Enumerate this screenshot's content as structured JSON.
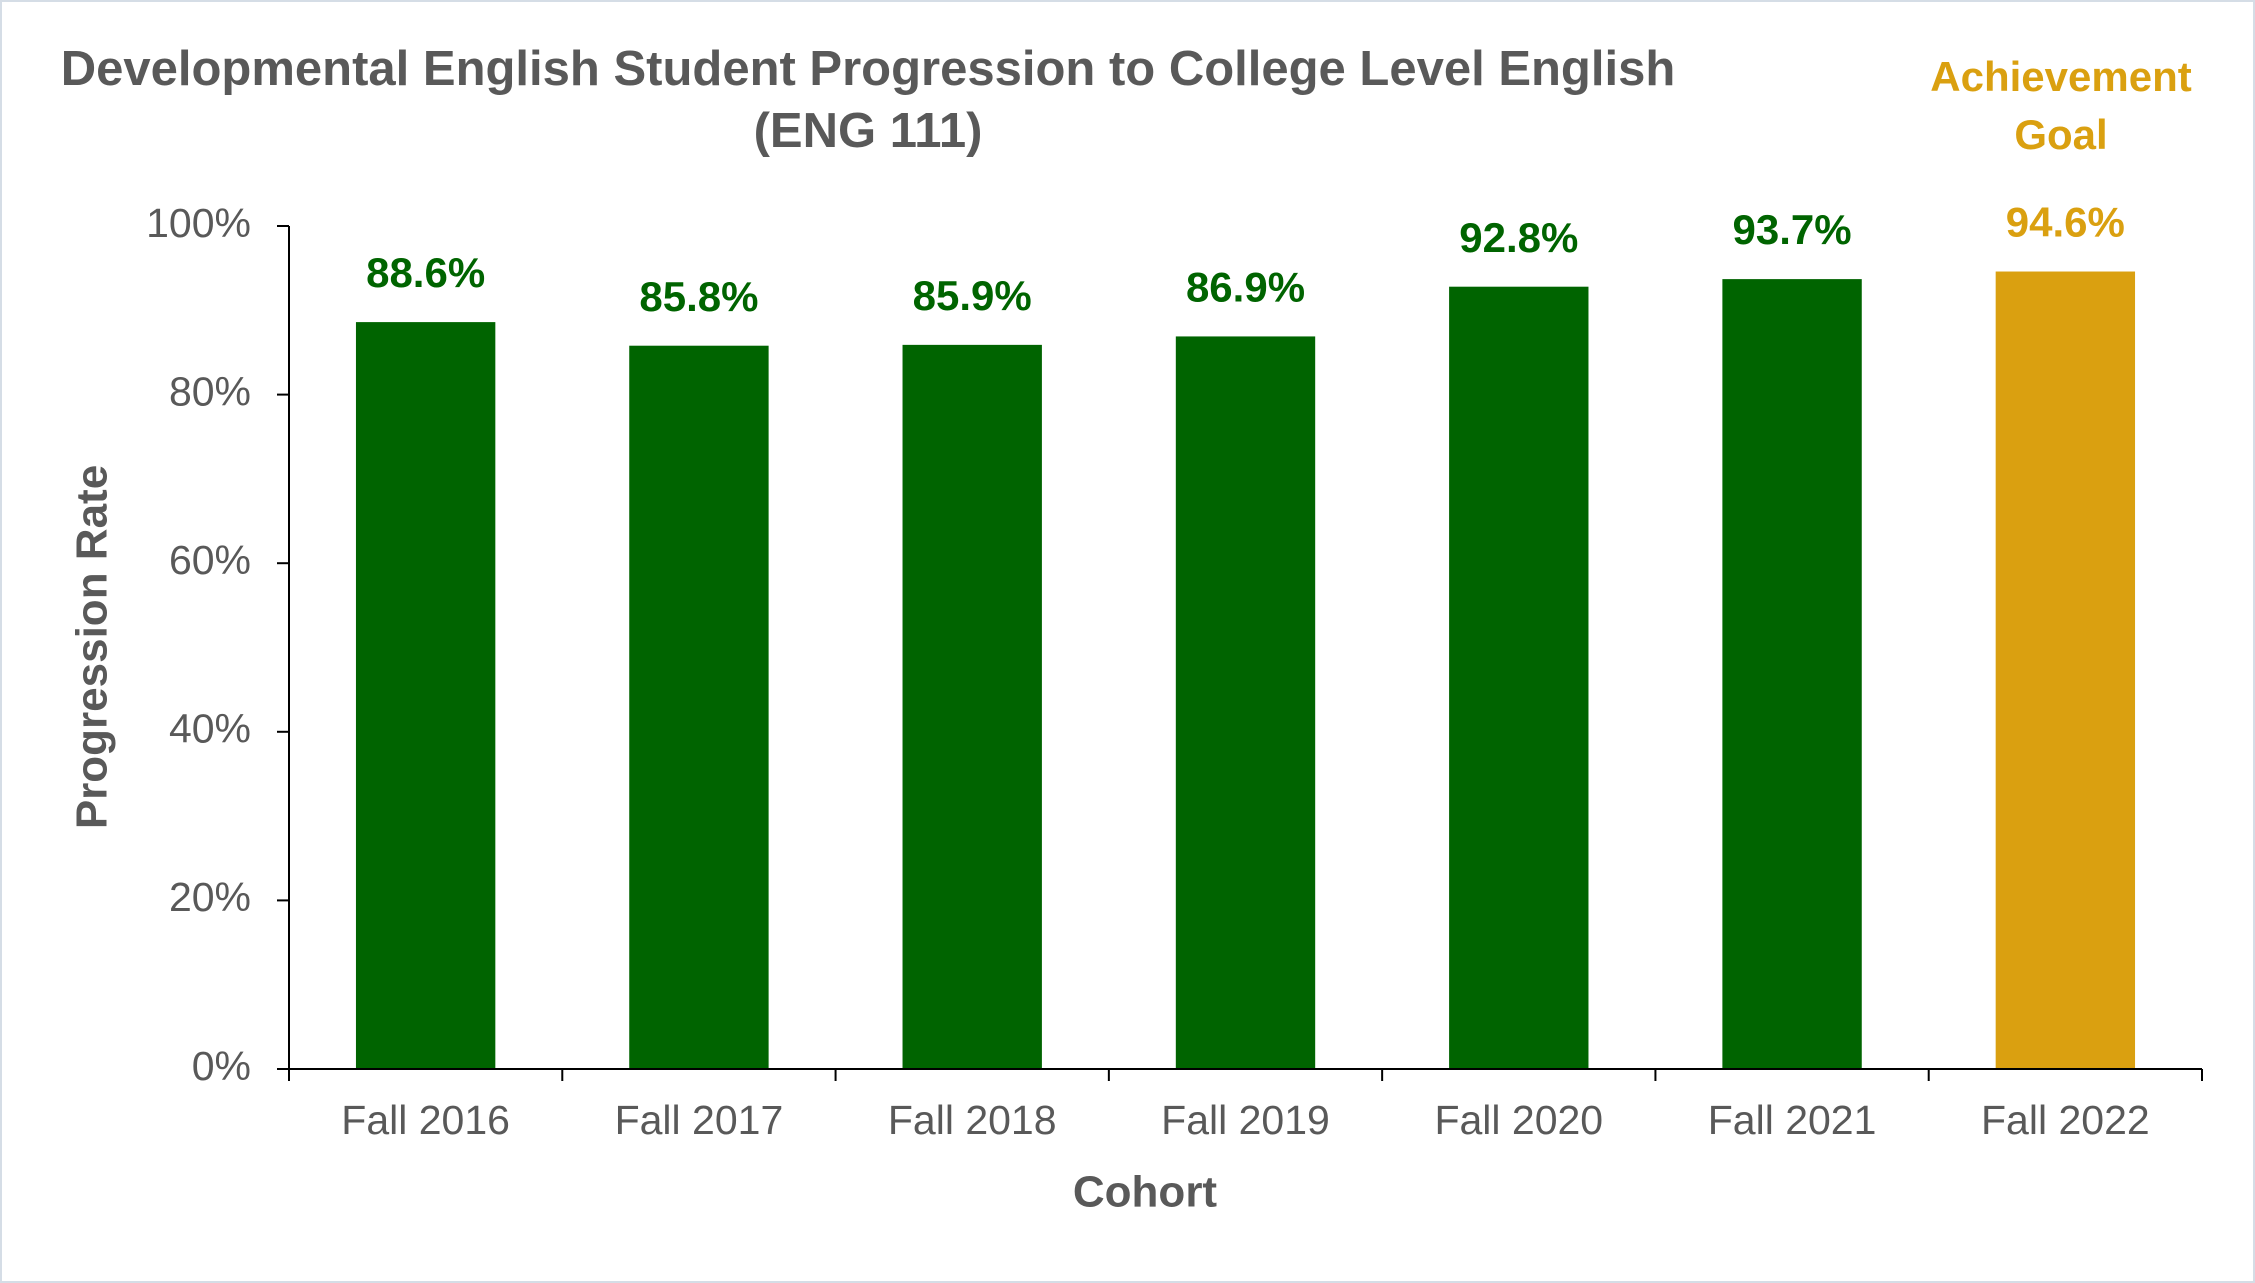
{
  "chart_data": {
    "type": "bar",
    "title": "Developmental English Student Progression to College Level English (ENG 111)",
    "annotation": "Achievement Goal",
    "x_label": "Cohort",
    "y_label": "Progression Rate",
    "categories": [
      "Fall 2016",
      "Fall 2017",
      "Fall 2018",
      "Fall 2019",
      "Fall 2020",
      "Fall 2021",
      "Fall 2022"
    ],
    "values": [
      88.6,
      85.8,
      85.9,
      86.9,
      92.8,
      93.7,
      94.6
    ],
    "value_labels": [
      "88.6%",
      "85.8%",
      "85.9%",
      "86.9%",
      "92.8%",
      "93.7%",
      "94.6%"
    ],
    "colors": [
      "#006400",
      "#006400",
      "#006400",
      "#006400",
      "#006400",
      "#006400",
      "#DAA010"
    ],
    "ylim": [
      0,
      100
    ],
    "yticks": [
      {
        "value": 0,
        "label": "0%"
      },
      {
        "value": 20,
        "label": "20%"
      },
      {
        "value": 40,
        "label": "40%"
      },
      {
        "value": 60,
        "label": "60%"
      },
      {
        "value": 80,
        "label": "80%"
      },
      {
        "value": 100,
        "label": "100%"
      }
    ],
    "grid": false
  }
}
